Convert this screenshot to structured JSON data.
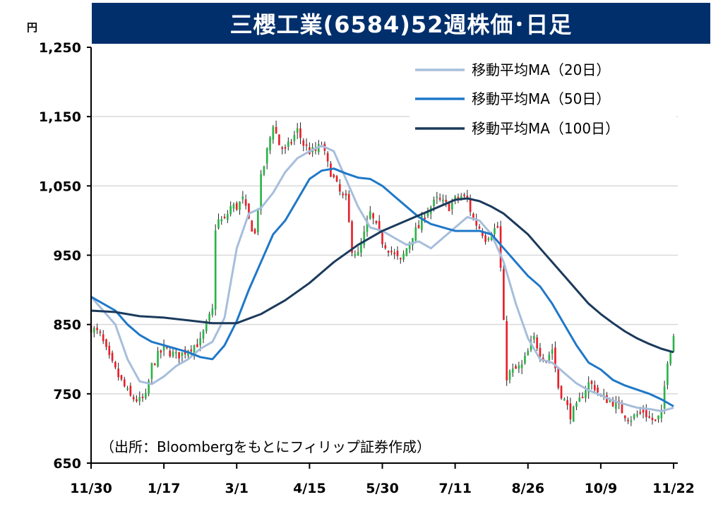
{
  "chart_data": {
    "type": "candlestick",
    "title": "三櫻工業(6584)52週株価･日足",
    "unit": "円",
    "ylim": [
      650,
      1250
    ],
    "y_ticks": [
      "1,250",
      "1,150",
      "1,050",
      "950",
      "850",
      "750",
      "650"
    ],
    "y_tick_values": [
      1250,
      1150,
      1050,
      950,
      850,
      750,
      650
    ],
    "x_ticks": [
      "11/30",
      "1/17",
      "3/1",
      "4/15",
      "5/30",
      "7/11",
      "8/26",
      "10/9",
      "11/22"
    ],
    "x_tick_index": [
      0,
      24,
      48,
      72,
      96,
      120,
      144,
      168,
      192
    ],
    "grid": true,
    "legend_position": "top-right",
    "source": "（出所：Bloombergをもとにフィリップ証券作成）",
    "colors": {
      "up": "#2db34a",
      "down": "#e8202a",
      "ma20": "#a7bedc",
      "ma50": "#1f78c8",
      "ma100": "#1b3a5c",
      "title_bg": "#002f6c",
      "grid": "#d9d9d9"
    },
    "series": [
      {
        "name": "移動平均MA（20日）",
        "key": "ma20",
        "anchors": [
          [
            0,
            890
          ],
          [
            8,
            850
          ],
          [
            12,
            800
          ],
          [
            16,
            768
          ],
          [
            20,
            764
          ],
          [
            24,
            775
          ],
          [
            28,
            790
          ],
          [
            32,
            800
          ],
          [
            36,
            815
          ],
          [
            40,
            825
          ],
          [
            44,
            860
          ],
          [
            48,
            960
          ],
          [
            52,
            1010
          ],
          [
            56,
            1018
          ],
          [
            60,
            1040
          ],
          [
            64,
            1070
          ],
          [
            68,
            1090
          ],
          [
            72,
            1100
          ],
          [
            76,
            1108
          ],
          [
            80,
            1100
          ],
          [
            84,
            1060
          ],
          [
            88,
            1020
          ],
          [
            92,
            990
          ],
          [
            96,
            985
          ],
          [
            100,
            975
          ],
          [
            104,
            965
          ],
          [
            108,
            970
          ],
          [
            112,
            960
          ],
          [
            116,
            975
          ],
          [
            120,
            990
          ],
          [
            124,
            1005
          ],
          [
            128,
            1000
          ],
          [
            132,
            980
          ],
          [
            136,
            940
          ],
          [
            140,
            880
          ],
          [
            144,
            830
          ],
          [
            148,
            800
          ],
          [
            152,
            795
          ],
          [
            156,
            780
          ],
          [
            160,
            765
          ],
          [
            164,
            755
          ],
          [
            168,
            748
          ],
          [
            172,
            740
          ],
          [
            176,
            735
          ],
          [
            180,
            730
          ],
          [
            184,
            728
          ],
          [
            188,
            725
          ],
          [
            192,
            730
          ]
        ]
      },
      {
        "name": "移動平均MA（50日）",
        "key": "ma50",
        "anchors": [
          [
            0,
            890
          ],
          [
            8,
            870
          ],
          [
            12,
            850
          ],
          [
            16,
            835
          ],
          [
            20,
            825
          ],
          [
            24,
            820
          ],
          [
            28,
            815
          ],
          [
            32,
            810
          ],
          [
            36,
            803
          ],
          [
            40,
            800
          ],
          [
            44,
            820
          ],
          [
            48,
            855
          ],
          [
            52,
            900
          ],
          [
            56,
            940
          ],
          [
            60,
            980
          ],
          [
            64,
            1000
          ],
          [
            68,
            1030
          ],
          [
            72,
            1060
          ],
          [
            76,
            1072
          ],
          [
            80,
            1075
          ],
          [
            84,
            1068
          ],
          [
            88,
            1062
          ],
          [
            92,
            1060
          ],
          [
            96,
            1050
          ],
          [
            100,
            1035
          ],
          [
            104,
            1020
          ],
          [
            108,
            1005
          ],
          [
            112,
            995
          ],
          [
            116,
            990
          ],
          [
            120,
            985
          ],
          [
            124,
            985
          ],
          [
            128,
            985
          ],
          [
            132,
            980
          ],
          [
            136,
            960
          ],
          [
            140,
            940
          ],
          [
            144,
            920
          ],
          [
            148,
            905
          ],
          [
            152,
            880
          ],
          [
            156,
            850
          ],
          [
            160,
            820
          ],
          [
            164,
            795
          ],
          [
            168,
            785
          ],
          [
            172,
            770
          ],
          [
            176,
            762
          ],
          [
            180,
            756
          ],
          [
            184,
            750
          ],
          [
            188,
            742
          ],
          [
            192,
            732
          ]
        ]
      },
      {
        "name": "移動平均MA（100日）",
        "key": "ma100",
        "anchors": [
          [
            0,
            870
          ],
          [
            8,
            868
          ],
          [
            16,
            862
          ],
          [
            24,
            860
          ],
          [
            32,
            856
          ],
          [
            40,
            852
          ],
          [
            48,
            852
          ],
          [
            56,
            865
          ],
          [
            64,
            885
          ],
          [
            72,
            910
          ],
          [
            80,
            940
          ],
          [
            88,
            965
          ],
          [
            96,
            985
          ],
          [
            104,
            1000
          ],
          [
            112,
            1015
          ],
          [
            120,
            1030
          ],
          [
            124,
            1032
          ],
          [
            128,
            1028
          ],
          [
            132,
            1020
          ],
          [
            136,
            1010
          ],
          [
            140,
            995
          ],
          [
            144,
            980
          ],
          [
            148,
            960
          ],
          [
            152,
            940
          ],
          [
            156,
            920
          ],
          [
            160,
            900
          ],
          [
            164,
            880
          ],
          [
            168,
            865
          ],
          [
            172,
            852
          ],
          [
            176,
            840
          ],
          [
            180,
            830
          ],
          [
            184,
            822
          ],
          [
            188,
            815
          ],
          [
            192,
            810
          ]
        ]
      }
    ],
    "close_anchors": [
      [
        0,
        845
      ],
      [
        3,
        835
      ],
      [
        6,
        800
      ],
      [
        9,
        775
      ],
      [
        11,
        760
      ],
      [
        13,
        745
      ],
      [
        16,
        740
      ],
      [
        18,
        745
      ],
      [
        20,
        790
      ],
      [
        22,
        805
      ],
      [
        24,
        815
      ],
      [
        26,
        810
      ],
      [
        28,
        805
      ],
      [
        30,
        808
      ],
      [
        32,
        815
      ],
      [
        34,
        820
      ],
      [
        36,
        825
      ],
      [
        38,
        850
      ],
      [
        39,
        860
      ],
      [
        40,
        870
      ],
      [
        41,
        990
      ],
      [
        42,
        1000
      ],
      [
        44,
        1000
      ],
      [
        46,
        1020
      ],
      [
        48,
        1020
      ],
      [
        50,
        1030
      ],
      [
        52,
        1000
      ],
      [
        54,
        980
      ],
      [
        56,
        1060
      ],
      [
        58,
        1100
      ],
      [
        60,
        1140
      ],
      [
        62,
        1110
      ],
      [
        64,
        1100
      ],
      [
        66,
        1115
      ],
      [
        68,
        1130
      ],
      [
        70,
        1110
      ],
      [
        72,
        1100
      ],
      [
        74,
        1100
      ],
      [
        76,
        1110
      ],
      [
        78,
        1080
      ],
      [
        80,
        1060
      ],
      [
        82,
        1040
      ],
      [
        84,
        1030
      ],
      [
        86,
        960
      ],
      [
        88,
        950
      ],
      [
        90,
        980
      ],
      [
        92,
        1010
      ],
      [
        94,
        990
      ],
      [
        96,
        970
      ],
      [
        98,
        960
      ],
      [
        100,
        950
      ],
      [
        102,
        940
      ],
      [
        104,
        960
      ],
      [
        106,
        980
      ],
      [
        108,
        990
      ],
      [
        110,
        1010
      ],
      [
        112,
        1020
      ],
      [
        114,
        1030
      ],
      [
        116,
        1025
      ],
      [
        118,
        1020
      ],
      [
        120,
        1030
      ],
      [
        122,
        1035
      ],
      [
        124,
        1030
      ],
      [
        126,
        1000
      ],
      [
        128,
        990
      ],
      [
        130,
        975
      ],
      [
        132,
        985
      ],
      [
        134,
        990
      ],
      [
        135,
        930
      ],
      [
        136,
        850
      ],
      [
        137,
        775
      ],
      [
        138,
        780
      ],
      [
        140,
        785
      ],
      [
        142,
        790
      ],
      [
        144,
        810
      ],
      [
        146,
        830
      ],
      [
        148,
        810
      ],
      [
        150,
        800
      ],
      [
        152,
        815
      ],
      [
        154,
        760
      ],
      [
        156,
        740
      ],
      [
        158,
        720
      ],
      [
        160,
        730
      ],
      [
        162,
        750
      ],
      [
        164,
        765
      ],
      [
        166,
        760
      ],
      [
        168,
        745
      ],
      [
        170,
        742
      ],
      [
        172,
        738
      ],
      [
        174,
        730
      ],
      [
        176,
        720
      ],
      [
        178,
        715
      ],
      [
        180,
        720
      ],
      [
        182,
        725
      ],
      [
        184,
        715
      ],
      [
        186,
        710
      ],
      [
        188,
        720
      ],
      [
        190,
        800
      ],
      [
        192,
        835
      ]
    ]
  },
  "legend": {
    "ma20": "移動平均MA（20日）",
    "ma50": "移動平均MA（50日）",
    "ma100": "移動平均MA（100日）"
  }
}
